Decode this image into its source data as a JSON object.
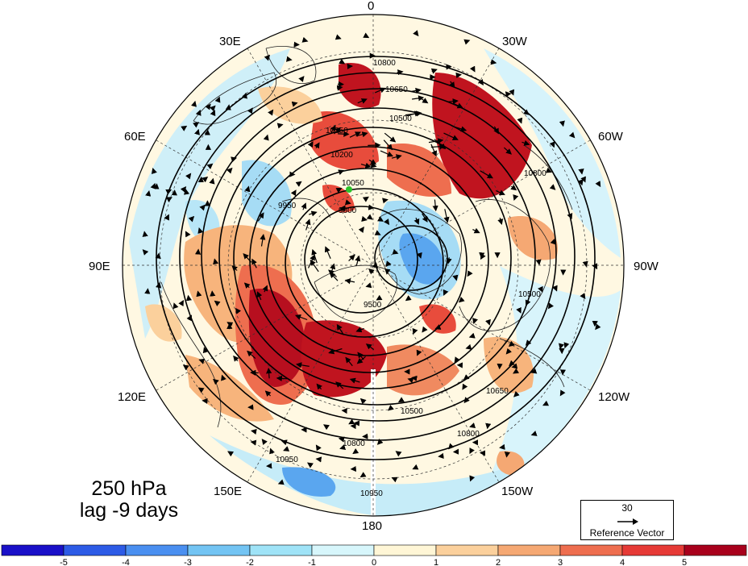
{
  "title": {
    "level": "250 hPa",
    "lag": "lag -9 days"
  },
  "longitude_labels": [
    {
      "id": "lon-0",
      "text": "0"
    },
    {
      "id": "lon-30w",
      "text": "30W"
    },
    {
      "id": "lon-60w",
      "text": "60W"
    },
    {
      "id": "lon-90w",
      "text": "90W"
    },
    {
      "id": "lon-120w",
      "text": "120W"
    },
    {
      "id": "lon-150w",
      "text": "150W"
    },
    {
      "id": "lon-180",
      "text": "180"
    },
    {
      "id": "lon-150e",
      "text": "150E"
    },
    {
      "id": "lon-120e",
      "text": "120E"
    },
    {
      "id": "lon-90e",
      "text": "90E"
    },
    {
      "id": "lon-60e",
      "text": "60E"
    },
    {
      "id": "lon-30e",
      "text": "30E"
    }
  ],
  "contour_labels": [
    "10800",
    "10650",
    "10500",
    "10350",
    "10200",
    "10050",
    "9950",
    "9800",
    "9500",
    "10950"
  ],
  "reference_vector": {
    "value": "30",
    "label": "Reference Vector"
  },
  "colorbar": {
    "colors": [
      "#1a10c8",
      "#2d5be6",
      "#4a8ff0",
      "#73c4f3",
      "#9fe3f7",
      "#d7f6fb",
      "#fff6d6",
      "#fbd09c",
      "#f5a873",
      "#ee6e4f",
      "#e63a36",
      "#a8001c"
    ],
    "ticks": [
      "-5",
      "-4",
      "-3",
      "-2",
      "-1",
      "0",
      "1",
      "2",
      "3",
      "4",
      "5"
    ]
  },
  "chart_data": {
    "type": "heatmap",
    "projection": "north polar stereographic",
    "center": "north pole",
    "variable_level": "250 hPa",
    "lag": "lag -9 days",
    "contour_values": [
      9500,
      9800,
      9950,
      10050,
      10200,
      10350,
      10500,
      10650,
      10800,
      10950
    ],
    "shading_range": [
      -5,
      5
    ],
    "shading_interval": 1,
    "reference_vector_magnitude": 30
  }
}
